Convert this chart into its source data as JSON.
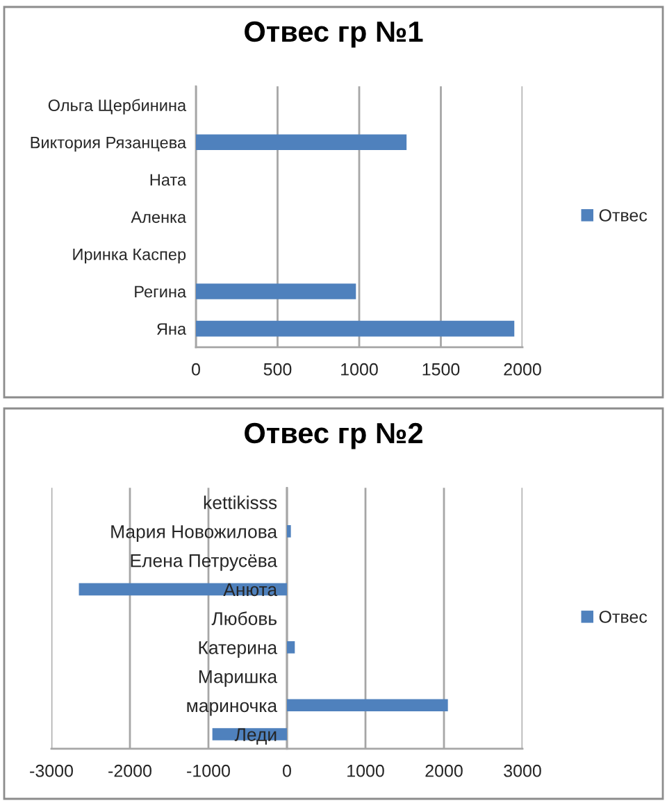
{
  "chart_data": [
    {
      "type": "bar",
      "orientation": "horizontal",
      "title": "Отвес гр №1",
      "categories": [
        "Ольга Щербинина",
        "Виктория Рязанцева",
        "Ната",
        "Аленка",
        "Иринка Каспер",
        "Регина",
        "Яна"
      ],
      "series": [
        {
          "name": "Отвес",
          "color": "#4f81bd",
          "values": [
            null,
            1290,
            null,
            null,
            null,
            980,
            1950
          ]
        }
      ],
      "xlim": [
        0,
        2000
      ],
      "xticks": [
        0,
        500,
        1000,
        1500,
        2000
      ],
      "grid": "x",
      "legend": "right"
    },
    {
      "type": "bar",
      "orientation": "horizontal",
      "title": "Отвес гр №2",
      "categories": [
        "kettikisss",
        "Мария Новожилова",
        "Елена Петрусёва",
        "Анюта",
        "Любовь",
        "Катерина",
        "Маришка",
        "мариночка",
        "Леди"
      ],
      "series": [
        {
          "name": "Отвес",
          "color": "#4f81bd",
          "values": [
            null,
            50,
            null,
            -2650,
            null,
            100,
            null,
            2050,
            -950
          ]
        }
      ],
      "xlim": [
        -3000,
        3000
      ],
      "xticks": [
        -3000,
        -2000,
        -1000,
        0,
        1000,
        2000,
        3000
      ],
      "grid": "x",
      "legend": "right"
    }
  ]
}
